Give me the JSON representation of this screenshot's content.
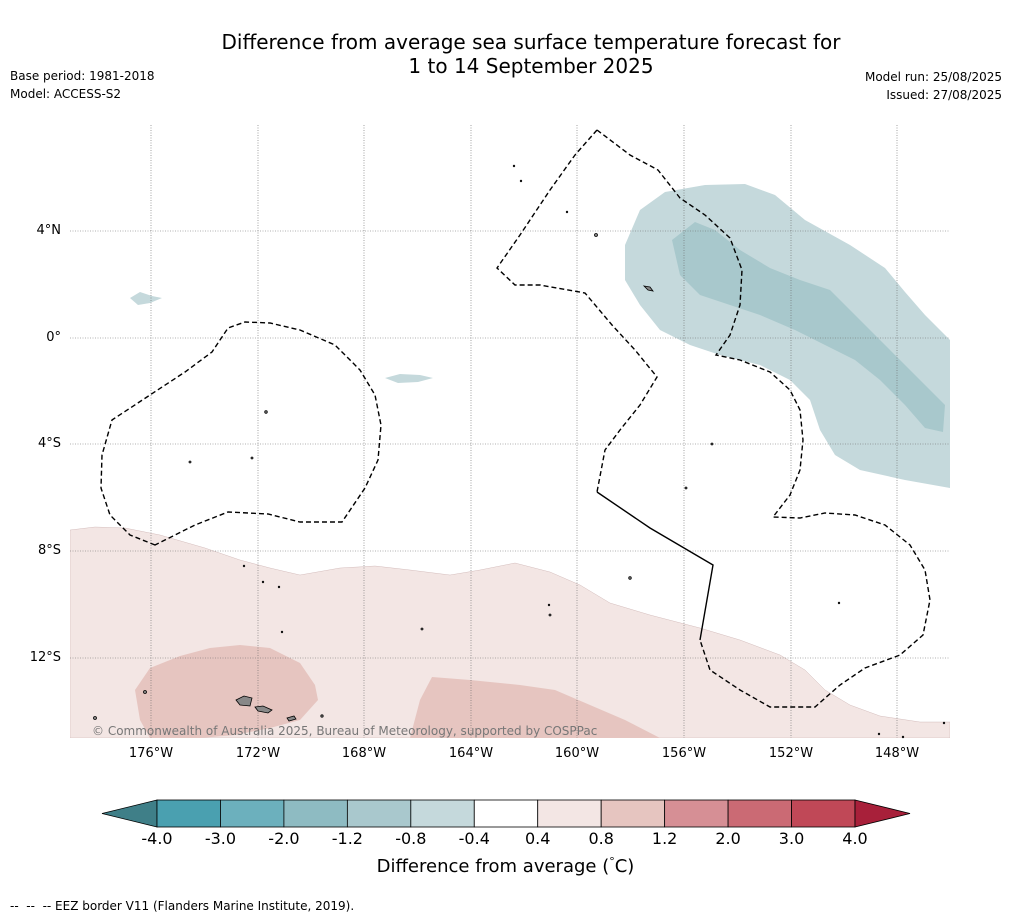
{
  "header": {
    "title_line1": "Difference from average sea surface temperature forecast for",
    "title_line2": "1 to 14 September 2025",
    "base_period": "Base period: 1981-2018",
    "model": "Model: ACCESS-S2",
    "model_run": "Model run: 25/08/2025",
    "issued": "Issued: 27/08/2025"
  },
  "map": {
    "lat_labels": [
      "4°N",
      "0°",
      "4°S",
      "8°S",
      "12°S"
    ],
    "lon_labels": [
      "176°W",
      "172°W",
      "168°W",
      "164°W",
      "160°W",
      "156°W",
      "152°W",
      "148°W"
    ],
    "copyright": "© Commonwealth of Australia 2025, Bureau of Meteorology, supported by COSPPac",
    "colors": {
      "cool_light": "#c5d9dc",
      "cool_mid": "#a8c8cc",
      "warm_light": "#f3e6e4",
      "warm_mid": "#e6c5c0",
      "land": "#888888",
      "grid": "#555555",
      "eez": "#000000"
    }
  },
  "colorbar": {
    "ticks": [
      "-4.0",
      "-3.0",
      "-2.0",
      "-1.2",
      "-0.8",
      "-0.4",
      "0.4",
      "0.8",
      "1.2",
      "2.0",
      "3.0",
      "4.0"
    ],
    "colors": [
      "#3f7f88",
      "#4aa0b0",
      "#6cb0bd",
      "#8ebbc2",
      "#a9c8cd",
      "#c5d9dc",
      "#ffffff",
      "#f3e6e4",
      "#e6c5c0",
      "#d68f95",
      "#cb6a74",
      "#c04857",
      "#a8203a"
    ],
    "title": "Difference from average (",
    "title_unit_deg": "°",
    "title_unit": "C)"
  },
  "footer": {
    "legend_text": "--  --  -- EEZ border V11 (Flanders Marine Institute, 2019)."
  }
}
